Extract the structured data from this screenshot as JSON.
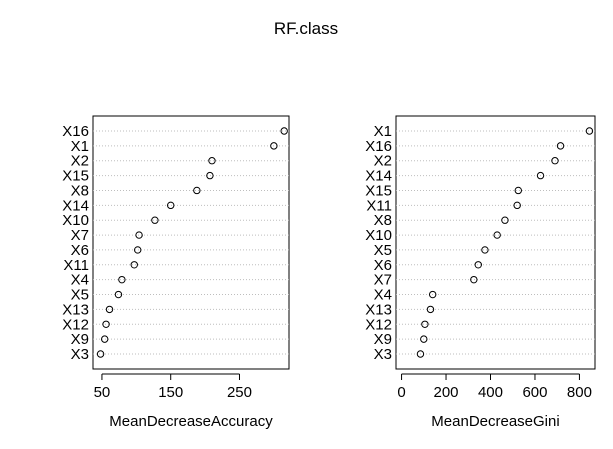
{
  "figure": {
    "title": "RF.class"
  },
  "chart_data": [
    {
      "type": "scatter",
      "xlabel": "MeanDecreaseAccuracy",
      "ylabel": "",
      "xlim": [
        37,
        322
      ],
      "xticks": [
        {
          "value": 50,
          "label": "50"
        },
        {
          "value": 150,
          "label": "150"
        },
        {
          "value": 250,
          "label": "250"
        }
      ],
      "grid": "dotted horizontal lines",
      "categories": [
        "X16",
        "X1",
        "X2",
        "X15",
        "X8",
        "X14",
        "X10",
        "X7",
        "X6",
        "X11",
        "X4",
        "X5",
        "X13",
        "X12",
        "X9",
        "X3"
      ],
      "values": [
        315,
        300,
        210,
        207,
        188,
        150,
        127,
        104,
        102,
        97,
        79,
        74,
        61,
        56,
        54,
        48
      ]
    },
    {
      "type": "scatter",
      "xlabel": "MeanDecreaseGini",
      "ylabel": "",
      "xlim": [
        -25,
        870
      ],
      "xticks": [
        {
          "value": 0,
          "label": "0"
        },
        {
          "value": 200,
          "label": "200"
        },
        {
          "value": 400,
          "label": "400"
        },
        {
          "value": 600,
          "label": "600"
        },
        {
          "value": 800,
          "label": "800"
        }
      ],
      "grid": "dotted horizontal lines",
      "categories": [
        "X1",
        "X16",
        "X2",
        "X14",
        "X15",
        "X11",
        "X8",
        "X10",
        "X5",
        "X6",
        "X7",
        "X4",
        "X13",
        "X12",
        "X9",
        "X3"
      ],
      "values": [
        845,
        715,
        690,
        625,
        525,
        520,
        465,
        430,
        375,
        345,
        325,
        140,
        130,
        105,
        100,
        85
      ]
    }
  ]
}
